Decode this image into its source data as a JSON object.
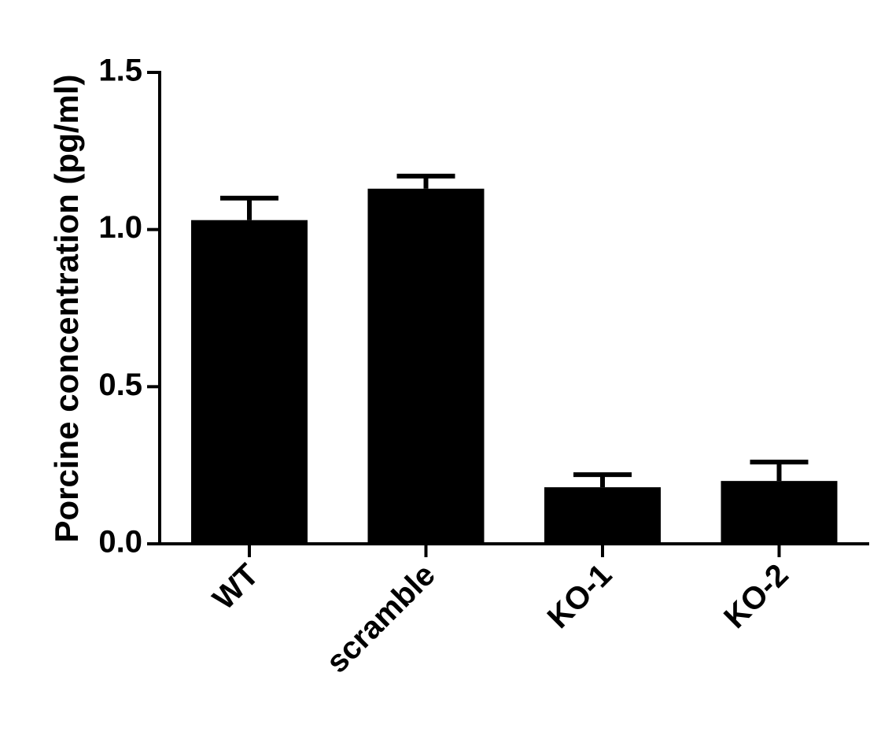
{
  "chart_data": {
    "type": "bar",
    "y_label": "Porcine concentration (pg/ml)",
    "categories": [
      "WT",
      "scramble",
      "KO-1",
      "KO-2"
    ],
    "values": [
      1.03,
      1.13,
      0.18,
      0.2
    ],
    "errors": [
      0.07,
      0.04,
      0.04,
      0.06
    ],
    "color": "#000000",
    "ylim": [
      0,
      1.5
    ],
    "yticks": [
      {
        "value": 0,
        "label": "0.0"
      },
      {
        "value": 0.5,
        "label": "0.5"
      },
      {
        "value": 1,
        "label": "1.0"
      },
      {
        "value": 1.5,
        "label": "1.5"
      }
    ],
    "grid": false
  }
}
